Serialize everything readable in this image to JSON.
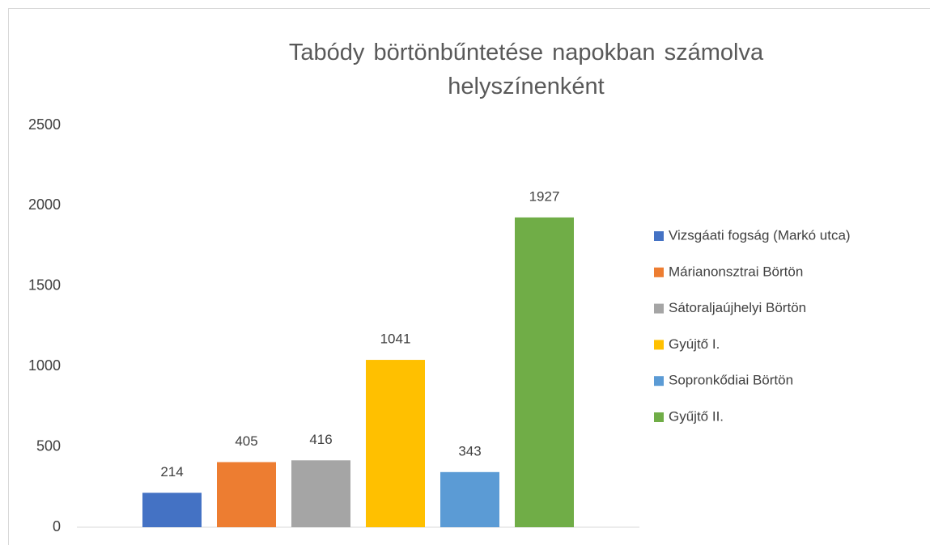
{
  "chart_data": {
    "type": "bar",
    "title": "Tabódy börtönbűntetése napokban számolva helyszínenként",
    "categories": [
      null
    ],
    "series": [
      {
        "name": "Vizsgáati fogság (Markó utca)",
        "color": "#4472c4",
        "values": [
          214
        ]
      },
      {
        "name": "Márianonsztrai Börtön",
        "color": "#ed7d31",
        "values": [
          405
        ]
      },
      {
        "name": "Sátoraljaújhelyi Börtön",
        "color": "#a5a5a5",
        "values": [
          416
        ]
      },
      {
        "name": "Gyújtő I.",
        "color": "#ffc000",
        "values": [
          1041
        ]
      },
      {
        "name": "Sopronkődiai Börtön",
        "color": "#5b9bd5",
        "values": [
          343
        ]
      },
      {
        "name": "Gyűjtő II.",
        "color": "#70ad47",
        "values": [
          1927
        ]
      }
    ],
    "ylim": [
      0,
      2500
    ],
    "yticks": [
      0,
      500,
      1000,
      1500,
      2000,
      2500
    ],
    "grid": false,
    "legend": "right"
  }
}
